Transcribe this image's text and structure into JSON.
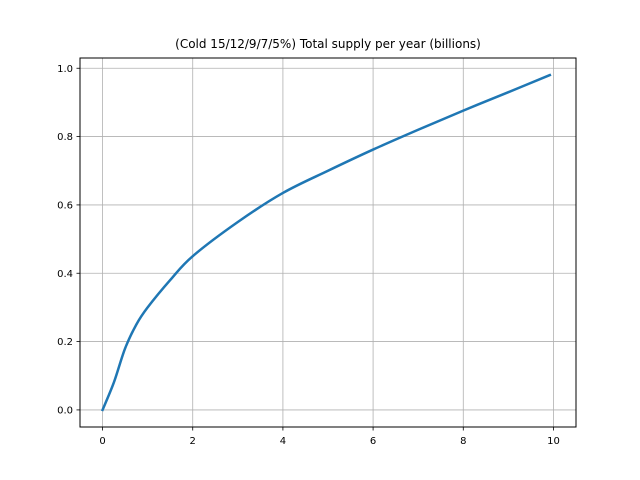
{
  "chart_data": {
    "type": "line",
    "title": "(Cold 15/12/9/7/5%) Total supply per year (billions)",
    "xlabel": "",
    "ylabel": "",
    "xlim": [
      -0.5,
      10.5
    ],
    "ylim": [
      -0.05,
      1.03
    ],
    "x_ticks": [
      0,
      2,
      4,
      6,
      8,
      10
    ],
    "y_ticks": [
      0.0,
      0.2,
      0.4,
      0.6,
      0.8,
      1.0
    ],
    "x_tick_labels": [
      "0",
      "2",
      "4",
      "6",
      "8",
      "10"
    ],
    "y_tick_labels": [
      "0.0",
      "0.2",
      "0.4",
      "0.6",
      "0.8",
      "1.0"
    ],
    "grid": true,
    "series": [
      {
        "name": "Total supply",
        "color": "#1f77b4",
        "x": [
          0,
          0.25,
          0.5,
          0.75,
          1.0,
          1.5,
          2.0,
          3.0,
          4.0,
          5.0,
          6.0,
          7.0,
          8.0,
          9.0,
          9.92
        ],
        "y": [
          0.0,
          0.08,
          0.18,
          0.25,
          0.3,
          0.38,
          0.45,
          0.55,
          0.635,
          0.7,
          0.762,
          0.82,
          0.876,
          0.93,
          0.98
        ]
      }
    ]
  }
}
